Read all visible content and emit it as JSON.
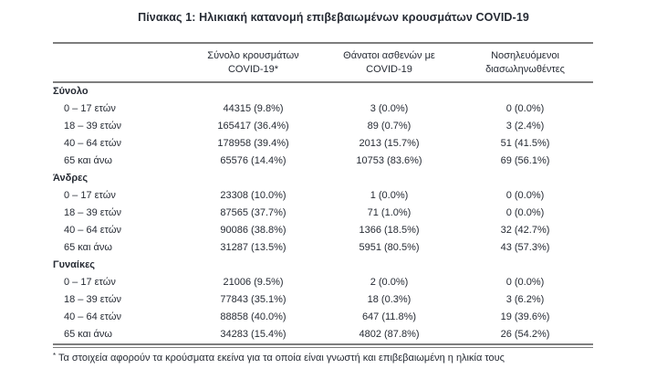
{
  "title": "Πίνακας 1: Ηλικιακή κατανομή επιβεβαιωμένων κρουσμάτων COVID-19",
  "colors": {
    "text": "#262b34",
    "rule": "#7e7e7e",
    "background": "#ffffff"
  },
  "table": {
    "columns": [
      {
        "line1": "Σύνολο κρουσμάτων",
        "line2": "COVID-19*"
      },
      {
        "line1": "Θάνατοι ασθενών με",
        "line2": "COVID-19"
      },
      {
        "line1": "Νοσηλευόμενοι",
        "line2": "διασωληνωθέντες"
      }
    ],
    "sections": [
      {
        "label": "Σύνολο",
        "rows": [
          {
            "age": "0 – 17 ετών",
            "cases": "44315 (9.8%)",
            "deaths": "3 (0.0%)",
            "intubated": "0 (0.0%)"
          },
          {
            "age": "18 – 39 ετών",
            "cases": "165417 (36.4%)",
            "deaths": "89 (0.7%)",
            "intubated": "3 (2.4%)"
          },
          {
            "age": "40 – 64 ετών",
            "cases": "178958 (39.4%)",
            "deaths": "2013 (15.7%)",
            "intubated": "51 (41.5%)"
          },
          {
            "age": "65 και άνω",
            "cases": "65576 (14.4%)",
            "deaths": "10753 (83.6%)",
            "intubated": "69 (56.1%)"
          }
        ]
      },
      {
        "label": "Άνδρες",
        "rows": [
          {
            "age": "0 – 17 ετών",
            "cases": "23308 (10.0%)",
            "deaths": "1 (0.0%)",
            "intubated": "0 (0.0%)"
          },
          {
            "age": "18 – 39 ετών",
            "cases": "87565 (37.7%)",
            "deaths": "71 (1.0%)",
            "intubated": "0 (0.0%)"
          },
          {
            "age": "40 – 64 ετών",
            "cases": "90086 (38.8%)",
            "deaths": "1366 (18.5%)",
            "intubated": "32 (42.7%)"
          },
          {
            "age": "65 και άνω",
            "cases": "31287 (13.5%)",
            "deaths": "5951 (80.5%)",
            "intubated": "43 (57.3%)"
          }
        ]
      },
      {
        "label": "Γυναίκες",
        "rows": [
          {
            "age": "0 – 17 ετών",
            "cases": "21006 (9.5%)",
            "deaths": "2 (0.0%)",
            "intubated": "0 (0.0%)"
          },
          {
            "age": "18 – 39 ετών",
            "cases": "77843 (35.1%)",
            "deaths": "18 (0.3%)",
            "intubated": "3 (6.2%)"
          },
          {
            "age": "40 – 64 ετών",
            "cases": "88858 (40.0%)",
            "deaths": "647 (11.8%)",
            "intubated": "19 (39.6%)"
          },
          {
            "age": "65 και άνω",
            "cases": "34283 (15.4%)",
            "deaths": "4802 (87.8%)",
            "intubated": "26 (54.2%)"
          }
        ]
      }
    ]
  },
  "footnote": {
    "marker": "*",
    "text": "Τα στοιχεία αφορούν τα κρούσματα εκείνα για τα οποία είναι γνωστή και επιβεβαιωμένη η ηλικία τους"
  }
}
